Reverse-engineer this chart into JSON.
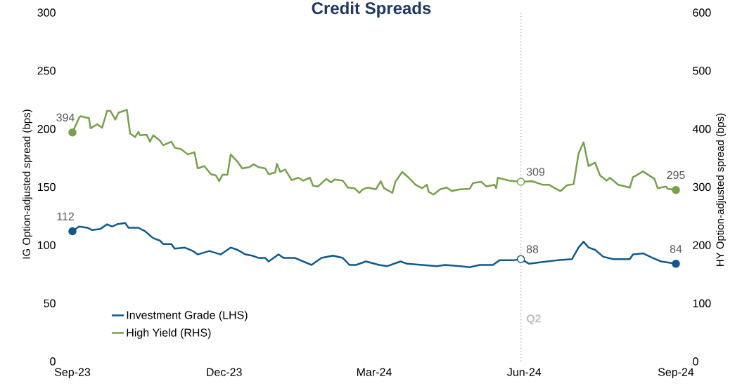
{
  "chart_data": {
    "type": "line",
    "title": "Credit Spreads",
    "ylabel": "IG Option-adjusted spread (bps)",
    "y2label": "HY Option-adjusted spread (bps)",
    "xlim": [
      "2023-09-30",
      "2024-09-30"
    ],
    "xticks": [
      {
        "value": "2023-09-30",
        "label": "Sep-23"
      },
      {
        "value": "2023-12-31",
        "label": "Dec-23"
      },
      {
        "value": "2024-03-31",
        "label": "Mar-24"
      },
      {
        "value": "2024-06-30",
        "label": "Jun-24"
      },
      {
        "value": "2024-09-30",
        "label": "Sep-24"
      }
    ],
    "ylim": [
      0,
      300
    ],
    "yticks": [
      0,
      50,
      100,
      150,
      200,
      250,
      300
    ],
    "y2lim": [
      0,
      600
    ],
    "y2ticks": [
      0,
      100,
      200,
      300,
      400,
      500,
      600
    ],
    "legend": "bottom left",
    "ref_lines": [
      {
        "axis": "x",
        "value": "2024-06-28",
        "label": "Q2",
        "color": "#bfbfbf",
        "line_style": "dotted"
      }
    ],
    "series": [
      {
        "name": "Investment Grade (LHS)",
        "color": "#105a8b",
        "axis": "y",
        "x": [
          "2023-09-30",
          "2023-10-04",
          "2023-10-09",
          "2023-10-12",
          "2023-10-17",
          "2023-10-21",
          "2023-10-24",
          "2023-10-27",
          "2023-11-01",
          "2023-11-03",
          "2023-11-09",
          "2023-11-13",
          "2023-11-18",
          "2023-11-22",
          "2023-11-24",
          "2023-11-29",
          "2023-12-01",
          "2023-12-07",
          "2023-12-12",
          "2023-12-15",
          "2023-12-22",
          "2023-12-29",
          "2024-01-04",
          "2024-01-08",
          "2024-01-13",
          "2024-01-17",
          "2024-01-21",
          "2024-01-25",
          "2024-01-27",
          "2024-01-30",
          "2024-02-02",
          "2024-02-05",
          "2024-02-08",
          "2024-02-12",
          "2024-02-22",
          "2024-02-28",
          "2024-03-06",
          "2024-03-12",
          "2024-03-16",
          "2024-03-20",
          "2024-03-26",
          "2024-04-03",
          "2024-04-08",
          "2024-04-16",
          "2024-04-20",
          "2024-04-29",
          "2024-05-08",
          "2024-05-13",
          "2024-05-22",
          "2024-05-28",
          "2024-06-03",
          "2024-06-11",
          "2024-06-15",
          "2024-06-23",
          "2024-06-28",
          "2024-07-03",
          "2024-07-14",
          "2024-07-20",
          "2024-07-29",
          "2024-08-02",
          "2024-08-05",
          "2024-08-08",
          "2024-08-12",
          "2024-08-17",
          "2024-08-23",
          "2024-09-02",
          "2024-09-04",
          "2024-09-10",
          "2024-09-16",
          "2024-09-21",
          "2024-09-30"
        ],
        "values": [
          112,
          116,
          115,
          113,
          114,
          118,
          116,
          118,
          119,
          115,
          115,
          112,
          106,
          104,
          101,
          101,
          97,
          98,
          95,
          92,
          95,
          92,
          98,
          96,
          92,
          91,
          89,
          89,
          86,
          89,
          92,
          89,
          89,
          89,
          83,
          89,
          91,
          89,
          83,
          83,
          86,
          83,
          82,
          86,
          84,
          83,
          82,
          83,
          82,
          81,
          83,
          83,
          87,
          87,
          88,
          84,
          86,
          87,
          88,
          98,
          103,
          98,
          96,
          90,
          88,
          88,
          92,
          93,
          89,
          86,
          84
        ],
        "value_labels": [
          "112",
          null,
          null,
          null,
          null,
          null,
          null,
          null,
          null,
          null,
          null,
          null,
          null,
          null,
          null,
          null,
          null,
          null,
          null,
          null,
          null,
          null,
          null,
          null,
          null,
          null,
          null,
          null,
          null,
          null,
          null,
          null,
          null,
          null,
          null,
          null,
          null,
          null,
          null,
          null,
          null,
          null,
          null,
          null,
          null,
          null,
          null,
          null,
          null,
          null,
          null,
          null,
          null,
          null,
          "88",
          null,
          null,
          null,
          null,
          null,
          null,
          null,
          null,
          null,
          null,
          null,
          null,
          null,
          null,
          null,
          "84"
        ]
      },
      {
        "name": "High Yield (RHS)",
        "color": "#77a04a",
        "axis": "y2",
        "x": [
          "2023-09-30",
          "2023-10-04",
          "2023-10-05",
          "2023-10-09",
          "2023-10-10",
          "2023-10-11",
          "2023-10-15",
          "2023-10-18",
          "2023-10-21",
          "2023-10-23",
          "2023-10-26",
          "2023-10-28",
          "2023-11-02",
          "2023-11-04",
          "2023-11-07",
          "2023-11-09",
          "2023-11-10",
          "2023-11-14",
          "2023-11-16",
          "2023-11-18",
          "2023-11-22",
          "2023-11-24",
          "2023-11-29",
          "2023-12-01",
          "2023-12-05",
          "2023-12-09",
          "2023-12-13",
          "2023-12-15",
          "2023-12-19",
          "2023-12-23",
          "2023-12-26",
          "2023-12-28",
          "2023-12-30",
          "2024-01-02",
          "2024-01-04",
          "2024-01-08",
          "2024-01-11",
          "2024-01-15",
          "2024-01-18",
          "2024-01-21",
          "2024-01-25",
          "2024-01-27",
          "2024-01-31",
          "2024-02-01",
          "2024-02-03",
          "2024-02-06",
          "2024-02-10",
          "2024-02-14",
          "2024-02-17",
          "2024-02-21",
          "2024-02-23",
          "2024-02-26",
          "2024-03-02",
          "2024-03-05",
          "2024-03-07",
          "2024-03-12",
          "2024-03-15",
          "2024-03-19",
          "2024-03-22",
          "2024-03-24",
          "2024-03-27",
          "2024-04-01",
          "2024-04-04",
          "2024-04-06",
          "2024-04-11",
          "2024-04-13",
          "2024-04-17",
          "2024-04-21",
          "2024-04-25",
          "2024-04-29",
          "2024-05-02",
          "2024-05-03",
          "2024-05-06",
          "2024-05-10",
          "2024-05-14",
          "2024-05-17",
          "2024-05-22",
          "2024-05-28",
          "2024-05-30",
          "2024-06-04",
          "2024-06-07",
          "2024-06-12",
          "2024-06-13",
          "2024-06-14",
          "2024-06-21",
          "2024-06-28",
          "2024-07-05",
          "2024-07-11",
          "2024-07-15",
          "2024-07-18",
          "2024-07-22",
          "2024-07-26",
          "2024-07-30",
          "2024-08-02",
          "2024-08-05",
          "2024-08-08",
          "2024-08-12",
          "2024-08-15",
          "2024-08-19",
          "2024-08-21",
          "2024-08-26",
          "2024-09-02",
          "2024-09-04",
          "2024-09-06",
          "2024-09-10",
          "2024-09-17",
          "2024-09-19",
          "2024-09-24",
          "2024-09-25",
          "2024-09-30"
        ],
        "values": [
          394,
          419,
          422,
          419,
          419,
          401,
          408,
          402,
          431,
          431,
          416,
          428,
          433,
          392,
          386,
          395,
          389,
          390,
          378,
          389,
          380,
          372,
          378,
          368,
          365,
          356,
          360,
          332,
          336,
          322,
          320,
          310,
          321,
          321,
          356,
          344,
          332,
          334,
          339,
          334,
          332,
          322,
          325,
          340,
          326,
          330,
          312,
          316,
          311,
          316,
          302,
          301,
          314,
          308,
          313,
          311,
          299,
          298,
          290,
          296,
          299,
          296,
          310,
          298,
          290,
          310,
          326,
          316,
          304,
          298,
          304,
          292,
          287,
          296,
          299,
          293,
          296,
          297,
          307,
          309,
          301,
          304,
          298,
          316,
          311,
          309,
          310,
          304,
          304,
          299,
          293,
          303,
          305,
          358,
          377,
          336,
          342,
          320,
          311,
          316,
          304,
          299,
          317,
          320,
          327,
          314,
          298,
          301,
          297,
          295
        ],
        "value_labels": [
          "394",
          null,
          null,
          null,
          null,
          null,
          null,
          null,
          null,
          null,
          null,
          null,
          null,
          null,
          null,
          null,
          null,
          null,
          null,
          null,
          null,
          null,
          null,
          null,
          null,
          null,
          null,
          null,
          null,
          null,
          null,
          null,
          null,
          null,
          null,
          null,
          null,
          null,
          null,
          null,
          null,
          null,
          null,
          null,
          null,
          null,
          null,
          null,
          null,
          null,
          null,
          null,
          null,
          null,
          null,
          null,
          null,
          null,
          null,
          null,
          null,
          null,
          null,
          null,
          null,
          null,
          null,
          null,
          null,
          null,
          null,
          null,
          null,
          null,
          null,
          null,
          null,
          null,
          null,
          null,
          null,
          null,
          null,
          null,
          null,
          "309",
          null,
          null,
          null,
          null,
          null,
          null,
          null,
          null,
          null,
          null,
          null,
          null,
          null,
          null,
          null,
          null,
          null,
          null,
          null,
          null,
          null,
          null,
          null,
          "295"
        ]
      }
    ]
  }
}
